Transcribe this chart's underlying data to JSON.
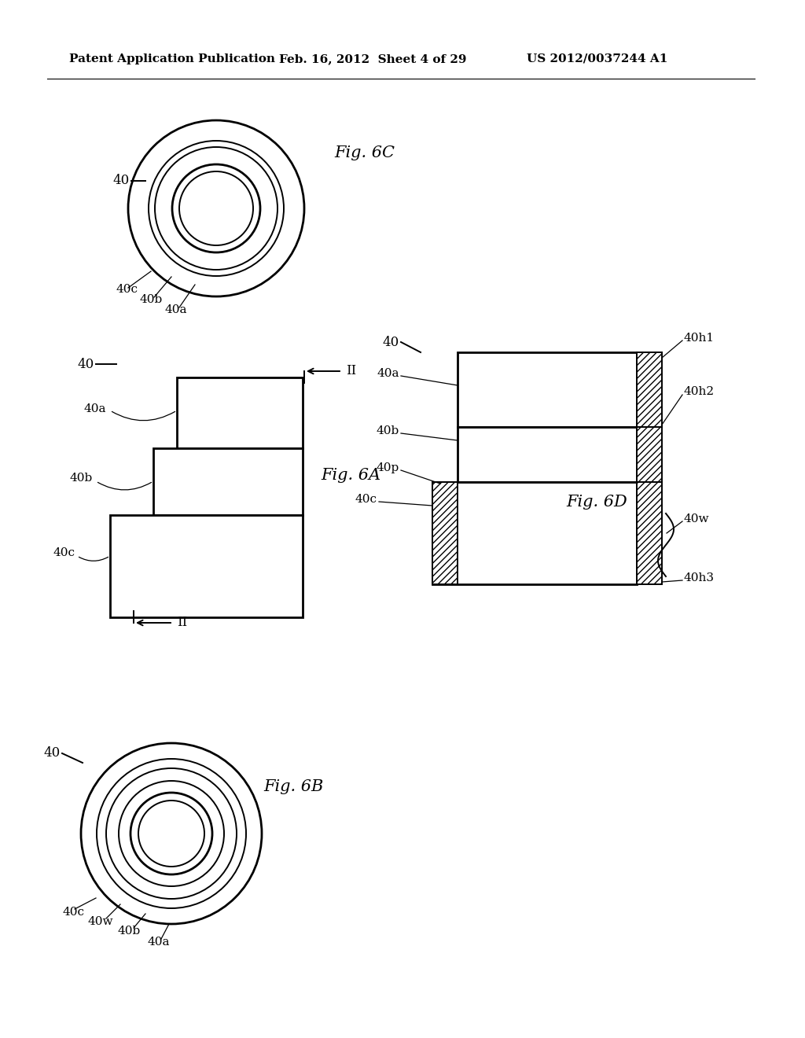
{
  "bg_color": "#ffffff",
  "header_text1": "Patent Application Publication",
  "header_text2": "Feb. 16, 2012  Sheet 4 of 29",
  "header_text3": "US 2012/0037244 A1",
  "fig6C_title": "Fig. 6C",
  "fig6A_title": "Fig. 6A",
  "fig6D_title": "Fig. 6D",
  "fig6B_title": "Fig. 6B"
}
